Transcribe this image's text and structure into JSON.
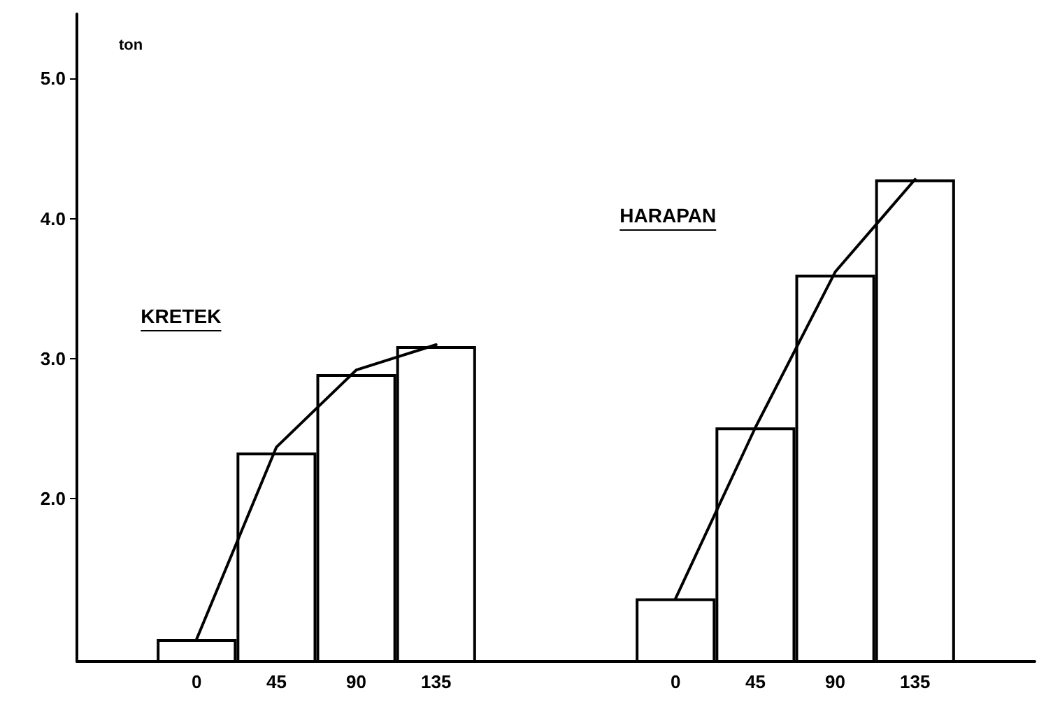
{
  "chart_data": {
    "type": "bar",
    "ylabel": "ton",
    "categories": [
      null,
      "0",
      "45",
      "90",
      "135",
      null,
      null,
      "0",
      "45",
      "90",
      "135",
      null
    ],
    "series": [
      {
        "color": "#ffffff",
        "values": [
          null,
          1.0,
          2.33,
          2.89,
          3.09,
          null,
          null,
          1.29,
          2.51,
          3.6,
          4.28,
          null
        ]
      },
      {
        "type": "line",
        "color": "#000000",
        "values": [
          null,
          1.0,
          2.37,
          2.92,
          3.1,
          null,
          null,
          null,
          null,
          null,
          null,
          null
        ]
      },
      {
        "type": "line",
        "color": "#000000",
        "values": [
          null,
          null,
          null,
          null,
          null,
          null,
          null,
          1.29,
          2.51,
          3.62,
          4.28,
          null
        ]
      }
    ],
    "ylim": [
      0.84,
      5.46
    ],
    "yticks": [
      {
        "value": 2,
        "label": "2.0"
      },
      {
        "value": 3,
        "label": "3.0"
      },
      {
        "value": 4,
        "label": "4.0"
      },
      {
        "value": 5,
        "label": "5.0"
      }
    ],
    "annotations": [
      "KRETEK",
      "HARAPAN"
    ],
    "marker": "none"
  }
}
